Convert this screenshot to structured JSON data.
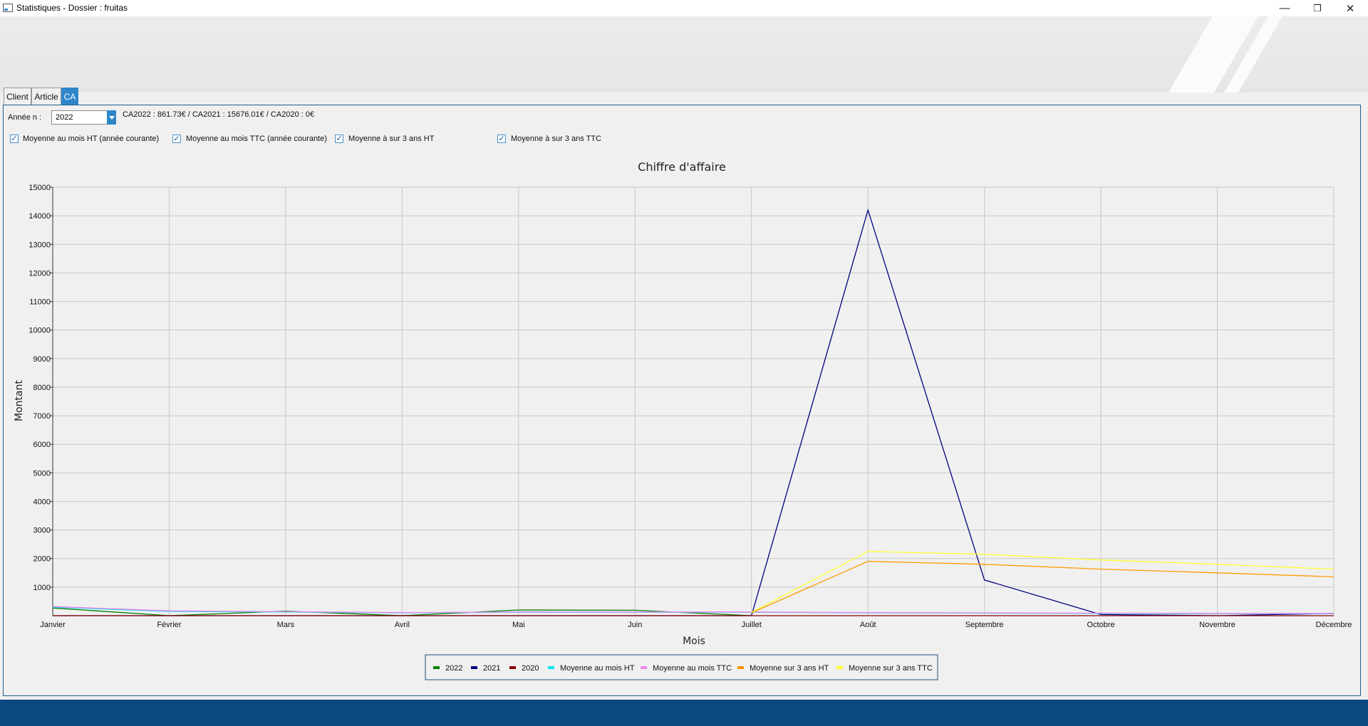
{
  "window": {
    "title": "Statistiques - Dossier : fruitas",
    "controls": {
      "minimize": "—",
      "restore": "❐",
      "close": "✕"
    }
  },
  "tabs": [
    {
      "label": "Client",
      "active": false
    },
    {
      "label": "Article",
      "active": false
    },
    {
      "label": "CA",
      "active": true
    }
  ],
  "filters": {
    "year_label": "Année n :",
    "year_value": "2022",
    "summary": "CA2022 : 861.73€ / CA2021 : 15676.01€ / CA2020 : 0€"
  },
  "checkboxes": [
    {
      "label": "Moyenne au mois HT (année courante)",
      "checked": true
    },
    {
      "label": "Moyenne au mois TTC (année courante)",
      "checked": true
    },
    {
      "label": "Moyenne à sur 3 ans HT",
      "checked": true
    },
    {
      "label": "Moyenne à sur 3 ans TTC",
      "checked": true
    }
  ],
  "chart_data": {
    "type": "line",
    "title": "Chiffre d'affaire",
    "xlabel": "Mois",
    "ylabel": "Montant",
    "ylim": [
      0,
      15000
    ],
    "yticks": [
      1000,
      2000,
      3000,
      4000,
      5000,
      6000,
      7000,
      8000,
      9000,
      10000,
      11000,
      12000,
      13000,
      14000,
      15000
    ],
    "grid": true,
    "legend_position": "bottom-center",
    "categories": [
      "Janvier",
      "Février",
      "Mars",
      "Avril",
      "Mai",
      "Juin",
      "Juillet",
      "Août",
      "Septembre",
      "Octobre",
      "Novembre",
      "Décembre"
    ],
    "series": [
      {
        "name": "2022",
        "color": "#008000",
        "values": [
          270,
          0,
          160,
          0,
          200,
          190,
          0,
          null,
          null,
          null,
          null,
          null
        ]
      },
      {
        "name": "2021",
        "color": "#000080",
        "values": [
          0,
          0,
          0,
          0,
          0,
          0,
          0,
          14200,
          1250,
          40,
          0,
          80
        ]
      },
      {
        "name": "2020",
        "color": "#8b0000",
        "values": [
          0,
          0,
          0,
          0,
          0,
          0,
          0,
          0,
          0,
          0,
          0,
          0
        ]
      },
      {
        "name": "Moyenne au mois HT",
        "color": "#00e5ee",
        "values": [
          300,
          150,
          130,
          100,
          120,
          120,
          120,
          100,
          90,
          80,
          70,
          70
        ]
      },
      {
        "name": "Moyenne au mois TTC",
        "color": "#ee82ee",
        "values": [
          320,
          170,
          140,
          110,
          130,
          130,
          130,
          110,
          100,
          90,
          80,
          80
        ]
      },
      {
        "name": "Moyenne sur 3 ans HT",
        "color": "#ff9900",
        "values": [
          null,
          null,
          null,
          null,
          null,
          null,
          100,
          1900,
          1800,
          1630,
          1500,
          1360
        ]
      },
      {
        "name": "Moyenne sur 3 ans TTC",
        "color": "#ffff33",
        "values": [
          null,
          null,
          null,
          null,
          null,
          null,
          120,
          2250,
          2150,
          1950,
          1800,
          1630
        ]
      }
    ]
  }
}
